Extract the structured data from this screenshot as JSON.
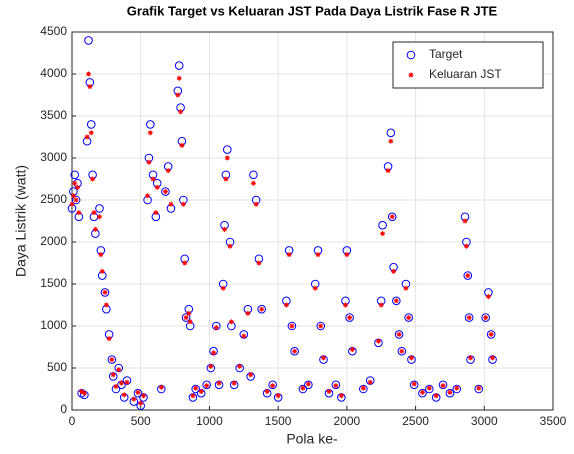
{
  "chart_data": {
    "type": "scatter",
    "title": "Grafik Target vs Keluaran JST Pada Daya Listrik Fase R JTE",
    "xlabel": "Pola ke-",
    "ylabel": "Daya Listrik (watt)",
    "x": [
      0,
      10,
      20,
      30,
      40,
      50,
      70,
      90,
      110,
      120,
      130,
      140,
      150,
      160,
      170,
      200,
      210,
      220,
      240,
      250,
      270,
      290,
      300,
      320,
      340,
      360,
      380,
      400,
      450,
      480,
      500,
      520,
      550,
      560,
      570,
      590,
      610,
      620,
      650,
      680,
      700,
      720,
      770,
      780,
      790,
      800,
      810,
      820,
      830,
      850,
      860,
      880,
      900,
      940,
      980,
      1010,
      1030,
      1050,
      1070,
      1100,
      1110,
      1120,
      1130,
      1150,
      1160,
      1180,
      1220,
      1250,
      1280,
      1300,
      1320,
      1340,
      1360,
      1380,
      1420,
      1460,
      1500,
      1560,
      1580,
      1600,
      1620,
      1680,
      1720,
      1770,
      1790,
      1810,
      1830,
      1870,
      1920,
      1960,
      1990,
      2000,
      2020,
      2040,
      2120,
      2170,
      2230,
      2250,
      2260,
      2300,
      2320,
      2330,
      2340,
      2360,
      2380,
      2400,
      2430,
      2450,
      2470,
      2490,
      2550,
      2600,
      2650,
      2700,
      2750,
      2800,
      2860,
      2870,
      2880,
      2890,
      2900,
      2960,
      3010,
      3030,
      3050,
      3060
    ],
    "series": [
      {
        "name": "Target",
        "color": "#0000ff",
        "marker": "o",
        "values": [
          2400,
          2600,
          2800,
          2500,
          2700,
          2300,
          200,
          180,
          3200,
          4400,
          3900,
          3400,
          2800,
          2300,
          2100,
          2400,
          1900,
          1600,
          1400,
          1200,
          900,
          600,
          400,
          250,
          500,
          300,
          150,
          350,
          100,
          200,
          50,
          150,
          2500,
          3000,
          3400,
          2800,
          2300,
          2700,
          250,
          2600,
          2900,
          2400,
          3800,
          4100,
          3600,
          3200,
          2500,
          1800,
          1100,
          1200,
          1000,
          150,
          250,
          200,
          300,
          500,
          700,
          1000,
          300,
          1500,
          2200,
          2800,
          3100,
          2000,
          1000,
          300,
          500,
          900,
          1200,
          400,
          2800,
          2500,
          1800,
          1200,
          200,
          300,
          150,
          1300,
          1900,
          1000,
          700,
          250,
          300,
          1500,
          1900,
          1000,
          600,
          200,
          300,
          150,
          1300,
          1900,
          1100,
          700,
          250,
          350,
          800,
          1300,
          2200,
          2900,
          3300,
          2300,
          1700,
          1300,
          900,
          700,
          1500,
          1100,
          600,
          300,
          200,
          250,
          150,
          300,
          200,
          250,
          2300,
          2000,
          1600,
          1100,
          600,
          250,
          1100,
          1400,
          900,
          600
        ]
      },
      {
        "name": "Keluaran JST",
        "color": "#ff0000",
        "marker": "*",
        "values": [
          2450,
          2550,
          2700,
          2500,
          2650,
          2350,
          220,
          200,
          3250,
          4000,
          3850,
          3300,
          2750,
          2350,
          2150,
          2300,
          1850,
          1650,
          1400,
          1250,
          850,
          600,
          420,
          280,
          480,
          320,
          180,
          330,
          130,
          210,
          80,
          170,
          2550,
          2950,
          3300,
          2750,
          2350,
          2650,
          270,
          2600,
          2850,
          2450,
          3750,
          3950,
          3550,
          3150,
          2450,
          1750,
          1100,
          1150,
          1050,
          170,
          260,
          220,
          290,
          520,
          680,
          980,
          320,
          1450,
          2150,
          2750,
          3000,
          1950,
          1050,
          320,
          520,
          880,
          1150,
          420,
          2700,
          2450,
          1750,
          1200,
          220,
          290,
          170,
          1250,
          1850,
          1000,
          700,
          260,
          310,
          1450,
          1850,
          1000,
          620,
          220,
          290,
          170,
          1250,
          1850,
          1100,
          720,
          260,
          330,
          820,
          1250,
          2100,
          2850,
          3200,
          2300,
          1650,
          1300,
          900,
          700,
          1450,
          1100,
          620,
          310,
          210,
          260,
          170,
          290,
          210,
          260,
          2250,
          1950,
          1600,
          1100,
          620,
          260,
          1100,
          1350,
          900,
          620
        ]
      }
    ],
    "xlim": [
      0,
      3500
    ],
    "xticks": [
      0,
      500,
      1000,
      1500,
      2000,
      2500,
      3000,
      3500
    ],
    "ylim": [
      0,
      4500
    ],
    "yticks": [
      0,
      500,
      1000,
      1500,
      2000,
      2500,
      3000,
      3500,
      4000,
      4500
    ],
    "grid": true,
    "legend": "northeast"
  }
}
